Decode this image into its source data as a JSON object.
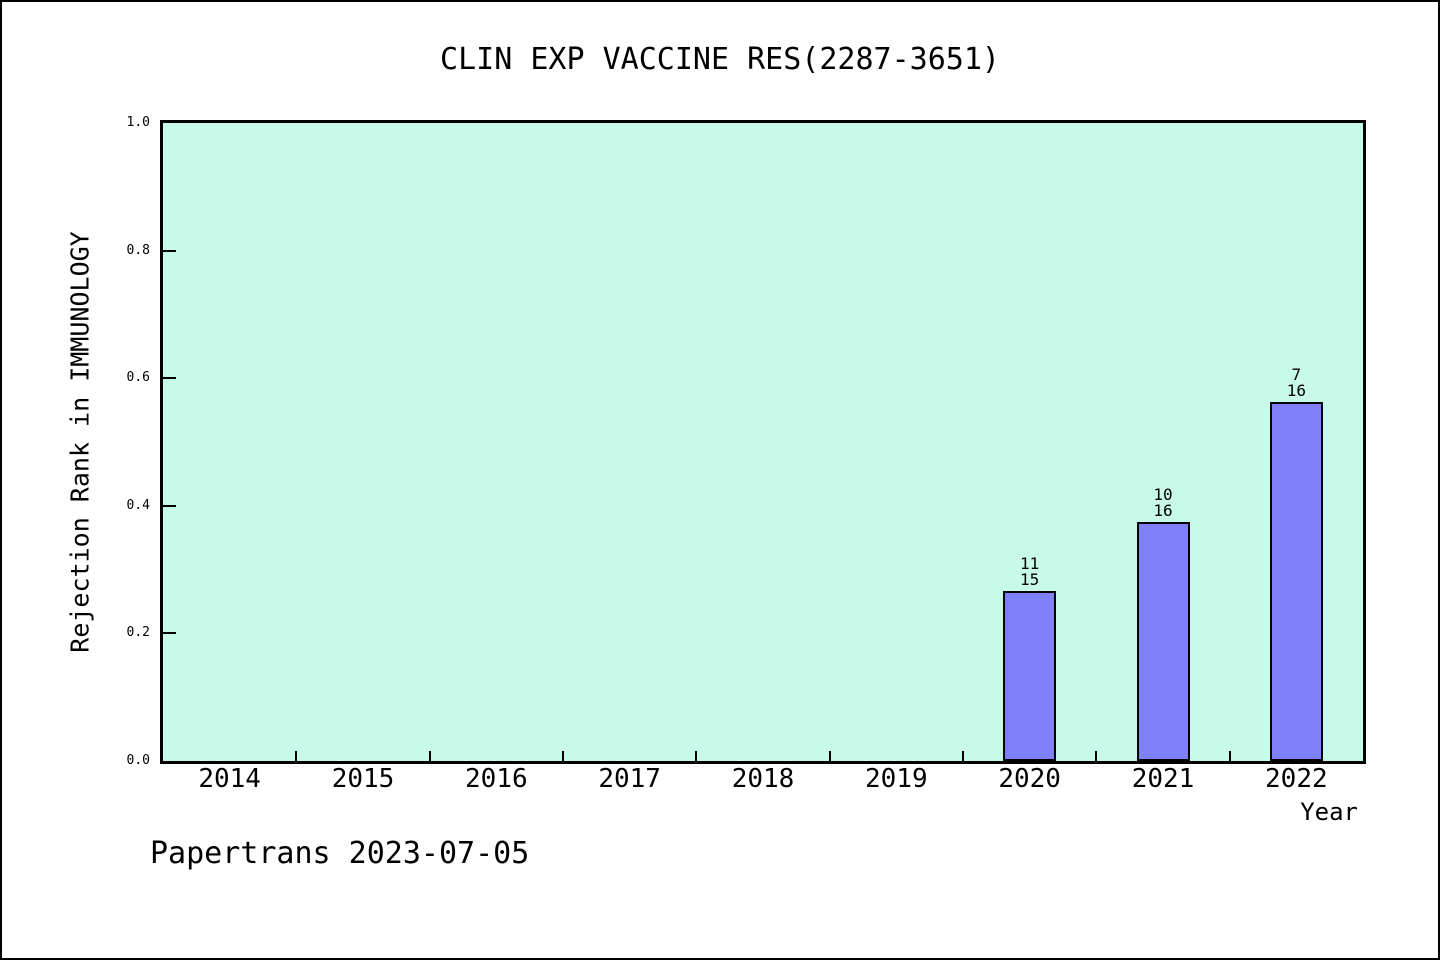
{
  "window": {
    "background": "#ffffff",
    "frame_border_color": "#000000"
  },
  "footer": {
    "text": "Papertrans 2023-07-05"
  },
  "chart_data": {
    "type": "bar",
    "title": "CLIN EXP VACCINE RES(2287-3651)",
    "xlabel": "Year",
    "ylabel": "Rejection Rank in IMMUNOLOGY",
    "ylim": [
      0.0,
      1.0
    ],
    "y_ticks": [
      0.0,
      0.2,
      0.4,
      0.6,
      0.8,
      1.0
    ],
    "y_tick_labels": [
      "0.0",
      "0.2",
      "0.4",
      "0.6",
      "0.8",
      "1.0"
    ],
    "categories": [
      "2014",
      "2015",
      "2016",
      "2017",
      "2018",
      "2019",
      "2020",
      "2021",
      "2022"
    ],
    "x_ticks_between_categories": true,
    "bars": [
      {
        "year": "2020",
        "value": 0.267,
        "label_top": "11",
        "label_bottom": "15"
      },
      {
        "year": "2021",
        "value": 0.375,
        "label_top": "10",
        "label_bottom": "16"
      },
      {
        "year": "2022",
        "value": 0.5625,
        "label_top": "7",
        "label_bottom": "16"
      }
    ],
    "bar_color": "#8080f8",
    "bar_border_color": "#000000",
    "plot_background": "#c8fae9",
    "axis_color": "#000000",
    "grid": false,
    "legend": false
  }
}
